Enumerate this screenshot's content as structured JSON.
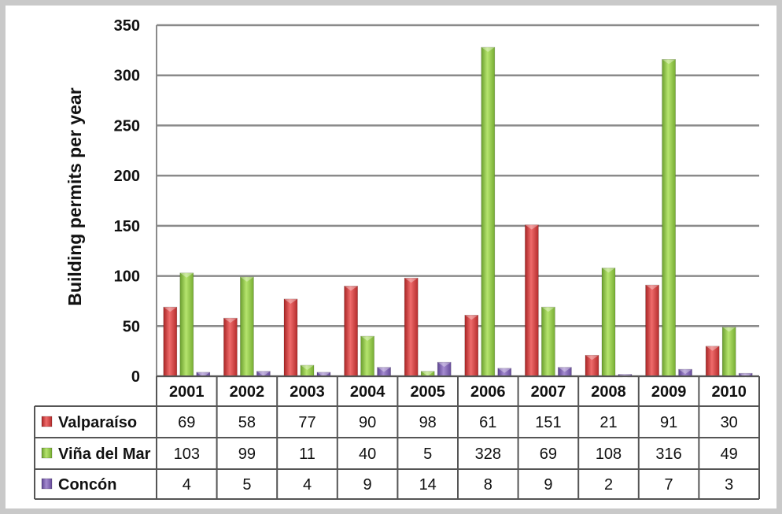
{
  "chart_data": {
    "type": "bar",
    "title": "",
    "xlabel": "",
    "ylabel": "Building permits per year",
    "ylim": [
      0,
      350
    ],
    "yticks": [
      "0",
      "50",
      "100",
      "150",
      "200",
      "250",
      "300",
      "350"
    ],
    "grid": true,
    "legend": "data table below chart",
    "categories": [
      "2001",
      "2002",
      "2003",
      "2004",
      "2005",
      "2006",
      "2007",
      "2008",
      "2009",
      "2010"
    ],
    "series": [
      {
        "name": "Valparaíso",
        "color": "#cc3333",
        "values": [
          69,
          58,
          77,
          90,
          98,
          61,
          151,
          21,
          91,
          30
        ]
      },
      {
        "name": "Viña del Mar",
        "color": "#88c040",
        "values": [
          103,
          99,
          11,
          40,
          5,
          328,
          69,
          108,
          316,
          49
        ]
      },
      {
        "name": "Concón",
        "color": "#7b5ea7",
        "values": [
          4,
          5,
          4,
          9,
          14,
          8,
          9,
          2,
          7,
          3
        ]
      }
    ]
  }
}
